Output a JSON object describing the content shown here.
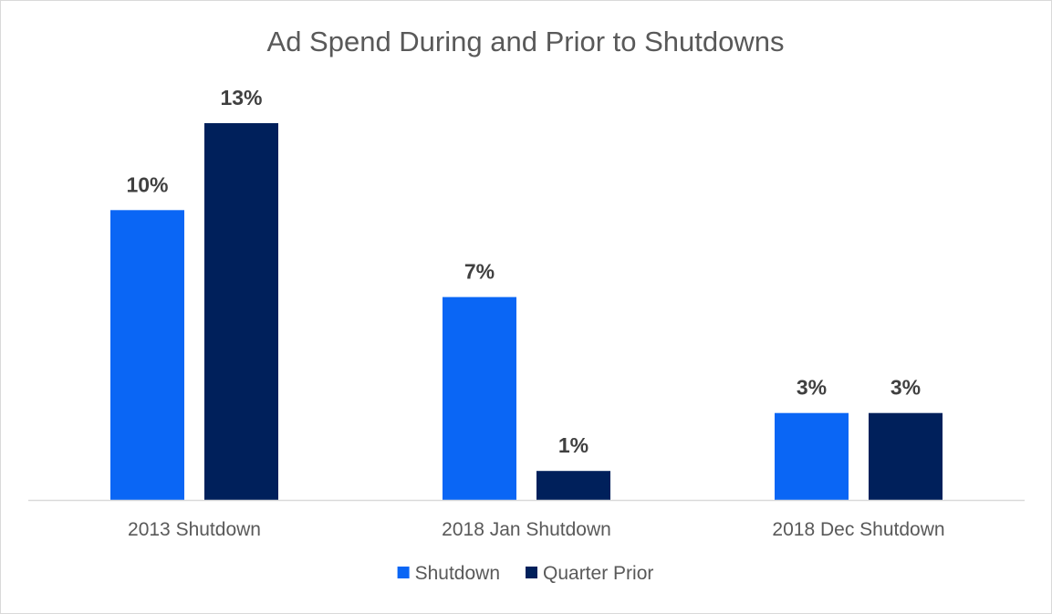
{
  "chart_data": {
    "type": "bar",
    "title": "Ad Spend During and Prior to Shutdowns",
    "categories": [
      "2013 Shutdown",
      "2018 Jan Shutdown",
      "2018 Dec Shutdown"
    ],
    "series": [
      {
        "name": "Shutdown",
        "color": "#0a66f5",
        "values": [
          0.1,
          0.07,
          0.03
        ],
        "labels": [
          "10%",
          "7%",
          "3%"
        ]
      },
      {
        "name": "Quarter Prior",
        "color": "#00205b",
        "values": [
          0.13,
          0.01,
          0.03
        ],
        "labels": [
          "13%",
          "1%",
          "3%"
        ]
      }
    ],
    "ylim": [
      0,
      0.13
    ],
    "grid": false,
    "legend_position": "bottom"
  }
}
